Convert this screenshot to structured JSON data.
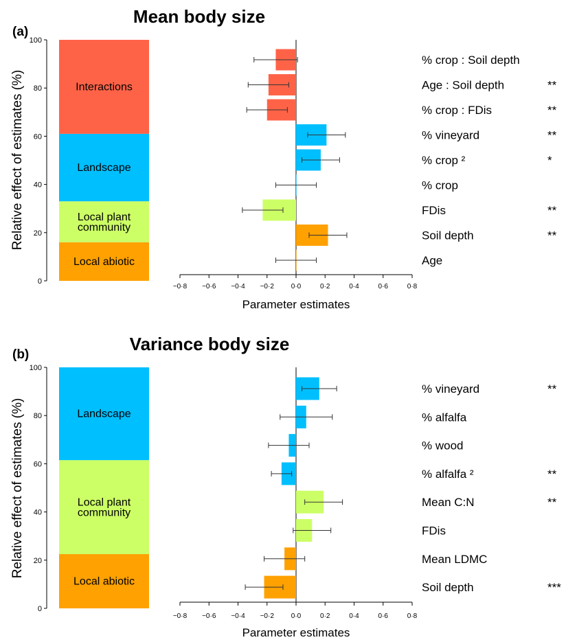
{
  "chart_data": [
    {
      "type": "bar",
      "panel_label": "(a)",
      "title": "Mean body size",
      "ylabel": "Relative effect of estimates (%)",
      "xlabel": "Parameter estimates",
      "ylim": [
        0,
        100
      ],
      "yticks": [
        "0",
        "20",
        "40",
        "60",
        "80",
        "100"
      ],
      "xlim": [
        -0.8,
        0.8
      ],
      "xticks": [
        "−0·8",
        "−0·6",
        "−0·4",
        "−0·2",
        "0·0",
        "0·2",
        "0·4",
        "0·6",
        "0·8"
      ],
      "stacked_groups": [
        {
          "name": "Local abiotic",
          "from": 0,
          "to": 16,
          "color": "#FFA100"
        },
        {
          "name": "Local plant community",
          "from": 16,
          "to": 33,
          "color": "#CCFF66"
        },
        {
          "name": "Landscape",
          "from": 33,
          "to": 61,
          "color": "#00BFFF"
        },
        {
          "name": "Interactions",
          "from": 61,
          "to": 100,
          "color": "#FF6347"
        }
      ],
      "terms": [
        {
          "name": "% crop : Soil depth",
          "estimate": -0.14,
          "ci": [
            -0.29,
            0.01
          ],
          "group": "Interactions",
          "sig": ""
        },
        {
          "name": "Age : Soil depth",
          "estimate": -0.19,
          "ci": [
            -0.33,
            -0.05
          ],
          "group": "Interactions",
          "sig": "**"
        },
        {
          "name": "% crop : FDis",
          "estimate": -0.2,
          "ci": [
            -0.34,
            -0.06
          ],
          "group": "Interactions",
          "sig": "**"
        },
        {
          "name": "% vineyard",
          "estimate": 0.21,
          "ci": [
            0.08,
            0.34
          ],
          "group": "Landscape",
          "sig": "**"
        },
        {
          "name": "% crop ²",
          "estimate": 0.17,
          "ci": [
            0.04,
            0.3
          ],
          "group": "Landscape",
          "sig": "*"
        },
        {
          "name": "% crop",
          "estimate": 0.0,
          "ci": [
            -0.14,
            0.14
          ],
          "group": "Landscape",
          "sig": ""
        },
        {
          "name": "FDis",
          "estimate": -0.23,
          "ci": [
            -0.37,
            -0.09
          ],
          "group": "Local plant community",
          "sig": "**"
        },
        {
          "name": "Soil depth",
          "estimate": 0.22,
          "ci": [
            0.09,
            0.35
          ],
          "group": "Local abiotic",
          "sig": "**"
        },
        {
          "name": "Age",
          "estimate": 0.0,
          "ci": [
            -0.14,
            0.14
          ],
          "group": "Local abiotic",
          "sig": ""
        }
      ]
    },
    {
      "type": "bar",
      "panel_label": "(b)",
      "title": "Variance body size",
      "ylabel": "Relative effect of estimates (%)",
      "xlabel": "Parameter estimates",
      "ylim": [
        0,
        100
      ],
      "yticks": [
        "0",
        "20",
        "40",
        "60",
        "80",
        "100"
      ],
      "xlim": [
        -0.8,
        0.8
      ],
      "xticks": [
        "−0·8",
        "−0·6",
        "−0·4",
        "−0·2",
        "0·0",
        "0·2",
        "0·4",
        "0·6",
        "0·8"
      ],
      "stacked_groups": [
        {
          "name": "Local abiotic",
          "from": 0,
          "to": 22.5,
          "color": "#FFA100"
        },
        {
          "name": "Local plant community",
          "from": 22.5,
          "to": 61.5,
          "color": "#CCFF66"
        },
        {
          "name": "Landscape",
          "from": 61.5,
          "to": 100,
          "color": "#00BFFF"
        }
      ],
      "terms": [
        {
          "name": "% vineyard",
          "estimate": 0.16,
          "ci": [
            0.04,
            0.28
          ],
          "group": "Landscape",
          "sig": "**"
        },
        {
          "name": "% alfalfa",
          "estimate": 0.07,
          "ci": [
            -0.11,
            0.25
          ],
          "group": "Landscape",
          "sig": ""
        },
        {
          "name": "% wood",
          "estimate": -0.05,
          "ci": [
            -0.19,
            0.09
          ],
          "group": "Landscape",
          "sig": ""
        },
        {
          "name": "% alfalfa ²",
          "estimate": -0.1,
          "ci": [
            -0.17,
            -0.03
          ],
          "group": "Landscape",
          "sig": "**"
        },
        {
          "name": "Mean C:N",
          "estimate": 0.19,
          "ci": [
            0.06,
            0.32
          ],
          "group": "Local plant community",
          "sig": "**"
        },
        {
          "name": "FDis",
          "estimate": 0.11,
          "ci": [
            -0.02,
            0.24
          ],
          "group": "Local plant community",
          "sig": ""
        },
        {
          "name": "Mean LDMC",
          "estimate": -0.08,
          "ci": [
            -0.22,
            0.06
          ],
          "group": "Local abiotic",
          "sig": ""
        },
        {
          "name": "Soil depth",
          "estimate": -0.22,
          "ci": [
            -0.35,
            -0.09
          ],
          "group": "Local abiotic",
          "sig": "***"
        }
      ]
    }
  ]
}
